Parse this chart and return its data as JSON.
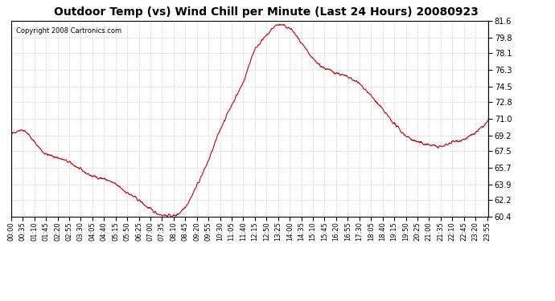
{
  "title": "Outdoor Temp (vs) Wind Chill per Minute (Last 24 Hours) 20080923",
  "copyright": "Copyright 2008 Cartronics.com",
  "line_color": "#cc0000",
  "background_color": "#ffffff",
  "grid_color": "#cccccc",
  "ylim": [
    60.4,
    81.6
  ],
  "yticks": [
    60.4,
    62.2,
    63.9,
    65.7,
    67.5,
    69.2,
    71.0,
    72.8,
    74.5,
    76.3,
    78.1,
    79.8,
    81.6
  ],
  "xtick_labels": [
    "00:00",
    "00:35",
    "01:10",
    "01:45",
    "02:20",
    "02:55",
    "03:30",
    "04:05",
    "04:40",
    "05:15",
    "05:50",
    "06:25",
    "07:00",
    "07:35",
    "08:10",
    "08:45",
    "09:20",
    "09:55",
    "10:30",
    "11:05",
    "11:40",
    "12:15",
    "12:50",
    "13:25",
    "14:00",
    "14:35",
    "15:10",
    "15:45",
    "16:20",
    "16:55",
    "17:30",
    "18:05",
    "18:40",
    "19:15",
    "19:50",
    "20:25",
    "21:00",
    "21:35",
    "22:10",
    "22:45",
    "23:20",
    "23:55"
  ],
  "n_points": 1440,
  "key_times": [
    0,
    35,
    70,
    105,
    140,
    175,
    210,
    245,
    280,
    315,
    350,
    385,
    420,
    455,
    490,
    525,
    560,
    595,
    630,
    665,
    700,
    735,
    770,
    805,
    840,
    875,
    910,
    945,
    980,
    1015,
    1050,
    1085,
    1120,
    1155,
    1190,
    1225,
    1260,
    1295,
    1330,
    1365,
    1400,
    1439
  ],
  "key_values": [
    69.2,
    69.8,
    68.5,
    67.2,
    66.8,
    66.3,
    65.5,
    64.8,
    64.5,
    63.9,
    63.0,
    62.2,
    61.2,
    60.6,
    60.5,
    61.5,
    63.8,
    66.5,
    69.8,
    72.5,
    75.0,
    78.5,
    80.0,
    81.2,
    80.8,
    79.2,
    77.5,
    76.5,
    76.0,
    75.5,
    74.8,
    73.5,
    72.0,
    70.5,
    69.2,
    68.5,
    68.2,
    68.0,
    68.5,
    68.8,
    69.5,
    70.8
  ]
}
